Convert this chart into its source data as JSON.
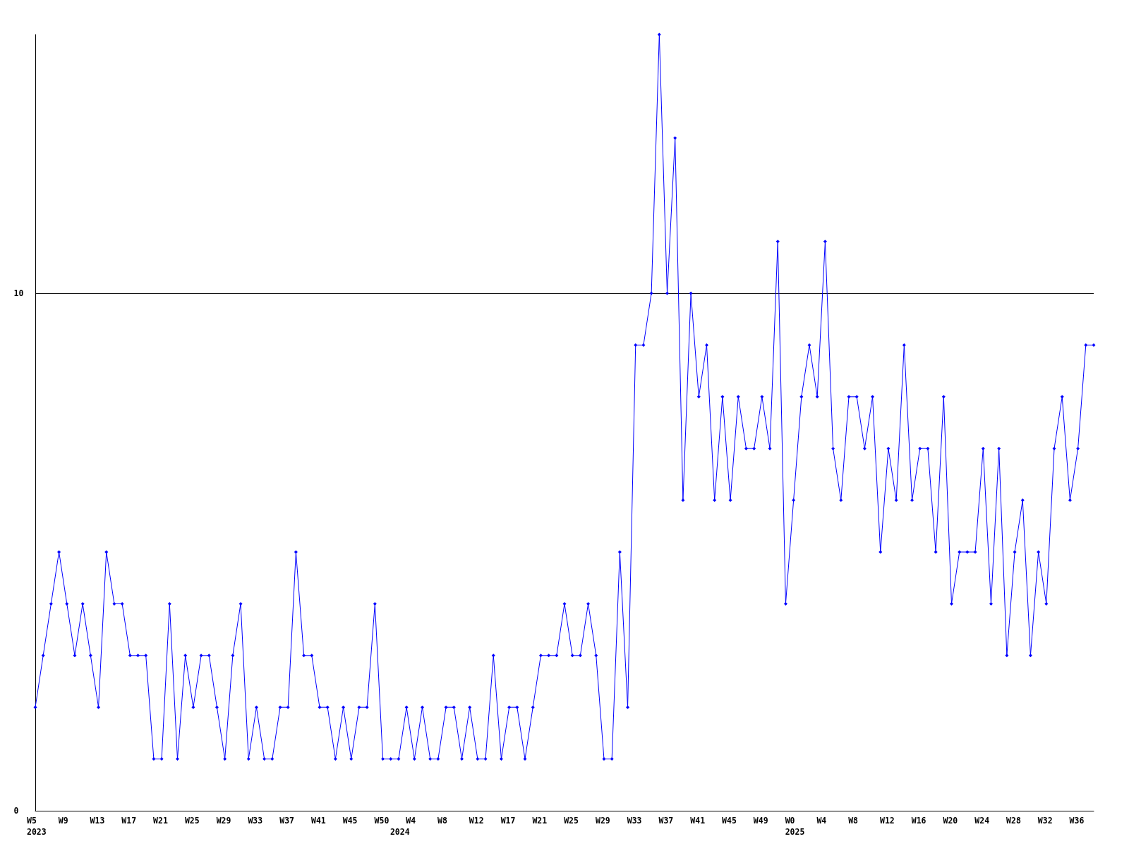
{
  "chart_data": {
    "type": "line",
    "categories": [
      "W5\n2023",
      null,
      null,
      null,
      "W9",
      null,
      null,
      null,
      "W13",
      null,
      null,
      null,
      "W17",
      null,
      null,
      null,
      "W21",
      null,
      null,
      null,
      "W25",
      null,
      null,
      null,
      "W29",
      null,
      null,
      null,
      "W33",
      null,
      null,
      null,
      "W37",
      null,
      null,
      null,
      "W41",
      null,
      null,
      null,
      "W45",
      null,
      null,
      null,
      "W50",
      null,
      "\n2024",
      null,
      "W4",
      null,
      null,
      null,
      "W8",
      null,
      null,
      null,
      "W12",
      null,
      null,
      null,
      "W17",
      null,
      null,
      null,
      "W21",
      null,
      null,
      null,
      "W25",
      null,
      null,
      null,
      "W29",
      null,
      null,
      null,
      "W33",
      null,
      null,
      null,
      "W37",
      null,
      null,
      null,
      "W41",
      null,
      null,
      null,
      "W45",
      null,
      null,
      null,
      "W49",
      null,
      null,
      null,
      "W0\n2025",
      null,
      null,
      null,
      "W4",
      null,
      null,
      null,
      "W8",
      null,
      null,
      null,
      "W12",
      null,
      null,
      null,
      "W16",
      null,
      null,
      null,
      "W20",
      null,
      null,
      null,
      "W24",
      null,
      null,
      null,
      "W28",
      null,
      null,
      null,
      "W32",
      null,
      null,
      null,
      "W36",
      null,
      null
    ],
    "values": [
      2,
      3,
      4,
      5,
      4,
      3,
      4,
      3,
      2,
      5,
      4,
      4,
      3,
      3,
      3,
      1,
      1,
      4,
      1,
      3,
      2,
      3,
      3,
      2,
      1,
      3,
      4,
      1,
      2,
      1,
      1,
      2,
      2,
      5,
      3,
      3,
      2,
      2,
      1,
      2,
      1,
      2,
      2,
      4,
      1,
      1,
      1,
      2,
      1,
      2,
      1,
      1,
      2,
      2,
      1,
      2,
      1,
      1,
      3,
      1,
      2,
      2,
      1,
      2,
      3,
      3,
      3,
      4,
      3,
      3,
      4,
      3,
      1,
      1,
      5,
      2,
      9,
      9,
      10,
      15,
      10,
      13,
      6,
      10,
      8,
      9,
      6,
      8,
      6,
      8,
      7,
      7,
      8,
      7,
      11,
      4,
      6,
      8,
      9,
      8,
      11,
      7,
      6,
      8,
      8,
      7,
      8,
      5,
      7,
      6,
      9,
      6,
      7,
      7,
      5,
      8,
      4,
      5,
      5,
      5,
      7,
      4,
      7,
      3,
      5,
      6,
      3,
      5,
      4,
      7,
      8,
      6,
      7,
      9,
      9
    ],
    "color": "#0000ff",
    "ylim": [
      0,
      15
    ],
    "yticks": [
      0,
      10
    ],
    "grid": "y",
    "marker": "diamond",
    "line_style": "solid"
  }
}
